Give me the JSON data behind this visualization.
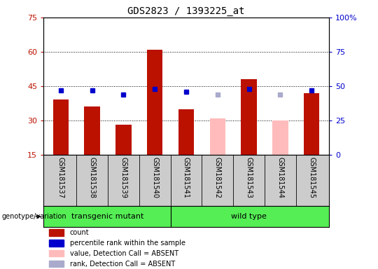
{
  "title": "GDS2823 / 1393225_at",
  "samples": [
    "GSM181537",
    "GSM181538",
    "GSM181539",
    "GSM181540",
    "GSM181541",
    "GSM181542",
    "GSM181543",
    "GSM181544",
    "GSM181545"
  ],
  "count_values": [
    39,
    36,
    28,
    61,
    35,
    null,
    48,
    null,
    42
  ],
  "count_absent_values": [
    null,
    null,
    null,
    null,
    null,
    31,
    null,
    30,
    null
  ],
  "rank_values": [
    47,
    47,
    44,
    48,
    46,
    null,
    48,
    null,
    47
  ],
  "rank_absent_values": [
    null,
    null,
    null,
    null,
    null,
    44,
    null,
    44,
    null
  ],
  "ylim_left": [
    15,
    75
  ],
  "ylim_right": [
    0,
    100
  ],
  "yticks_left": [
    15,
    30,
    45,
    60,
    75
  ],
  "yticks_right": [
    0,
    25,
    50,
    75,
    100
  ],
  "ytick_labels_left": [
    "15",
    "30",
    "45",
    "60",
    "75"
  ],
  "ytick_labels_right": [
    "0",
    "25",
    "50",
    "75",
    "100%"
  ],
  "groups": [
    {
      "label": "transgenic mutant",
      "start": 0,
      "end": 4
    },
    {
      "label": "wild type",
      "start": 4,
      "end": 9
    }
  ],
  "group_color": "#55ee55",
  "bar_width": 0.5,
  "count_color": "#bb1100",
  "count_absent_color": "#ffbbbb",
  "rank_color": "#0000cc",
  "rank_absent_color": "#aaaacc",
  "plot_bg_color": "#ffffff",
  "label_area_bg": "#cccccc",
  "genotype_label": "genotype/variation",
  "legend_items": [
    {
      "color": "#bb1100",
      "label": "count"
    },
    {
      "color": "#0000cc",
      "label": "percentile rank within the sample"
    },
    {
      "color": "#ffbbbb",
      "label": "value, Detection Call = ABSENT"
    },
    {
      "color": "#aaaacc",
      "label": "rank, Detection Call = ABSENT"
    }
  ]
}
